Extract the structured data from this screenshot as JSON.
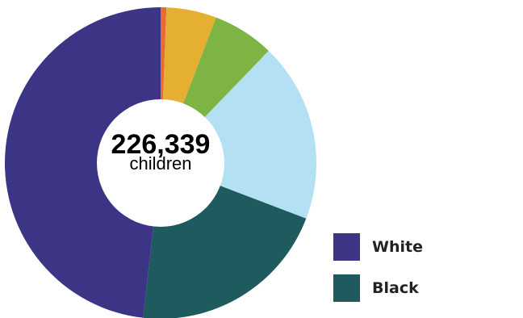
{
  "chart_data": {
    "type": "pie",
    "style": "donut",
    "center_label": {
      "total": "226,339",
      "unit": "children"
    },
    "slices": [
      {
        "value": 0.6,
        "color": "#e86a3a"
      },
      {
        "value": 5.2,
        "color": "#e5b032"
      },
      {
        "value": 6.4,
        "color": "#7db443"
      },
      {
        "value": 18.6,
        "color": "#b4e0f4"
      },
      {
        "value": 21.0,
        "color": "#1f5a5e"
      },
      {
        "value": 48.2,
        "color": "#3c3586"
      }
    ],
    "legend": {
      "position": "bottom-right",
      "items": [
        {
          "label": "White",
          "color": "#3c3586"
        },
        {
          "label": "Black",
          "color": "#1f5a5e"
        }
      ]
    }
  }
}
